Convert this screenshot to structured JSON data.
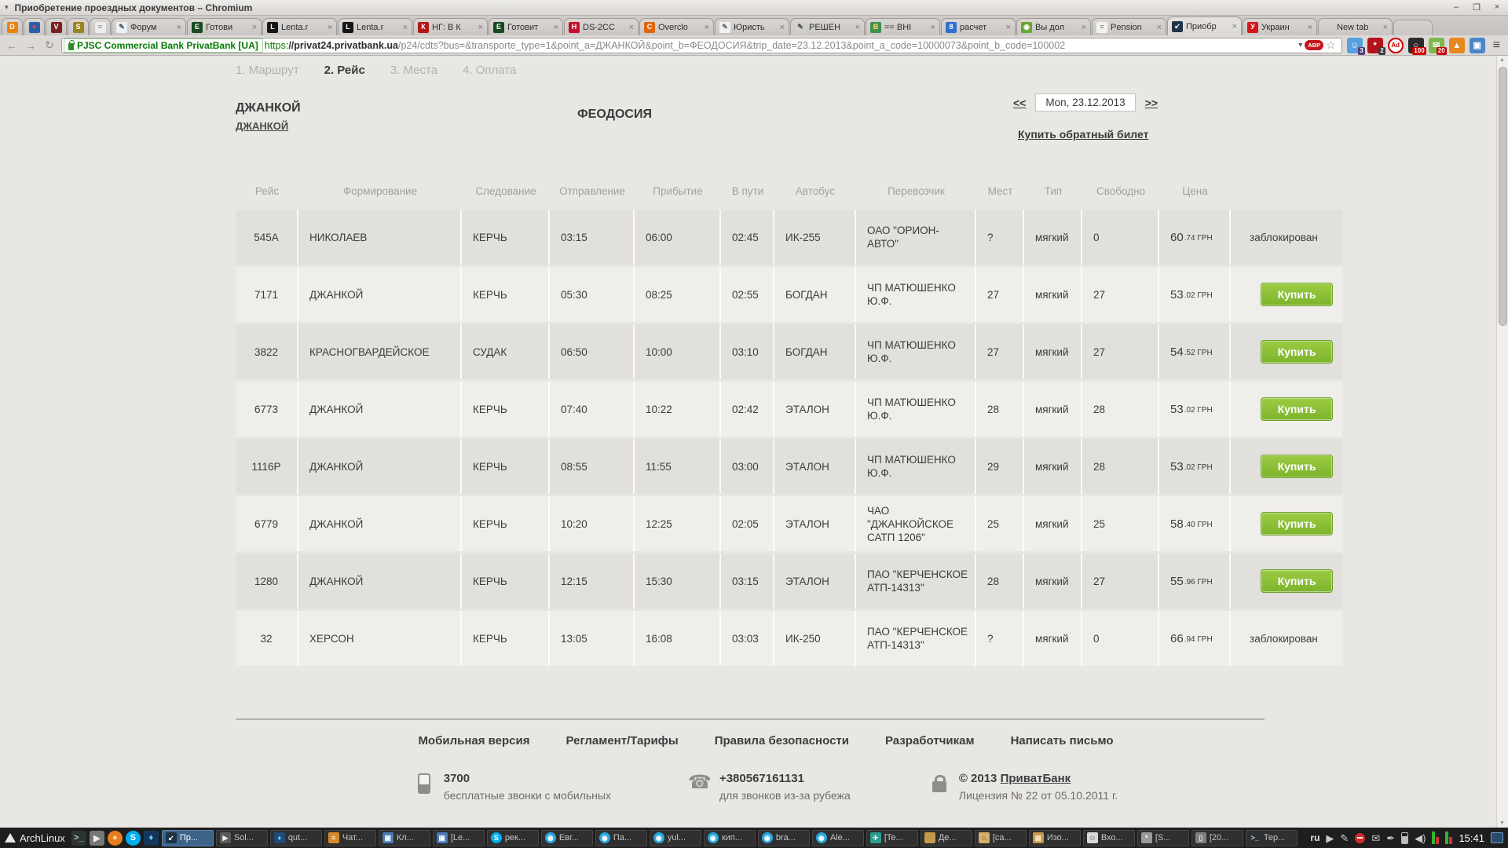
{
  "window": {
    "menu_marker": "▾",
    "title": "Приобретение проездных документов – Chromium",
    "minimize": "–",
    "maximize": "❐",
    "close": "×"
  },
  "browser": {
    "pinned_tabs": [
      {
        "bg": "#e8830c",
        "glyph": "D",
        "fg": "#ffffff"
      },
      {
        "bg": "#2b5eab",
        "glyph": "+",
        "fg": "#ff5555"
      },
      {
        "bg": "#7a2020",
        "glyph": "V",
        "fg": "#ffffff"
      },
      {
        "bg": "#9a8420",
        "glyph": "S",
        "fg": "#ffffff"
      },
      {
        "bg": "#ececec",
        "glyph": "≡",
        "fg": "#888888"
      }
    ],
    "tabs": [
      {
        "label": "Форум",
        "bg": "#eef1f4",
        "glyph": "✎",
        "fg": "#445566",
        "close": "×",
        "active": ""
      },
      {
        "label": "Готови",
        "bg": "#174a21",
        "glyph": "Е",
        "fg": "#ffffff",
        "close": "×",
        "active": ""
      },
      {
        "label": "Lenta.r",
        "bg": "#151515",
        "glyph": "L",
        "fg": "#ffffff",
        "close": "×",
        "active": ""
      },
      {
        "label": "Lenta.r",
        "bg": "#151515",
        "glyph": "L",
        "fg": "#ffffff",
        "close": "×",
        "active": ""
      },
      {
        "label": "НГ: В К",
        "bg": "#b51515",
        "glyph": "К",
        "fg": "#ffffff",
        "close": "×",
        "active": ""
      },
      {
        "label": "Готовит",
        "bg": "#174a21",
        "glyph": "Е",
        "fg": "#ffffff",
        "close": "×",
        "active": ""
      },
      {
        "label": "DS-2CC",
        "bg": "#c3112a",
        "glyph": "H",
        "fg": "#ffffff",
        "close": "×",
        "active": ""
      },
      {
        "label": "Overclo",
        "bg": "#e2660f",
        "glyph": "C",
        "fg": "#ffffff",
        "close": "×",
        "active": ""
      },
      {
        "label": "Юристь",
        "bg": "#f0f0f0",
        "glyph": "✎",
        "fg": "#666666",
        "close": "×",
        "active": ""
      },
      {
        "label": "РЕШЕН",
        "bg": "#cfcfcf",
        "glyph": "✎",
        "fg": "#444444",
        "close": "×",
        "active": ""
      },
      {
        "label": "== ВНІ",
        "bg": "#3f8f4f",
        "glyph": "В",
        "fg": "#ffe066",
        "close": "×",
        "active": ""
      },
      {
        "label": "расчет",
        "bg": "#2f6fd0",
        "glyph": "8",
        "fg": "#ffffff",
        "close": "×",
        "active": ""
      },
      {
        "label": "Вы дол",
        "bg": "#69a82f",
        "glyph": "◉",
        "fg": "#ffffff",
        "close": "×",
        "active": ""
      },
      {
        "label": "Pension",
        "bg": "#f2f2f2",
        "glyph": "≡",
        "fg": "#777777",
        "close": "×",
        "active": ""
      },
      {
        "label": "Приобр",
        "bg": "#1f3347",
        "glyph": "↙",
        "fg": "#ffffff",
        "close": "×",
        "active": "true"
      },
      {
        "label": "Украин",
        "bg": "#d01818",
        "glyph": "У",
        "fg": "#ffffff",
        "close": "×",
        "active": ""
      },
      {
        "label": "New tab",
        "bg": "transparent",
        "glyph": "",
        "fg": "#888888",
        "close": "×",
        "active": ""
      }
    ],
    "nav": {
      "back": "←",
      "forward": "→",
      "reload": "↻"
    },
    "omnibox": {
      "ev_label": "PJSC Commercial Bank PrivatBank [UA]",
      "scheme": "https:",
      "host": "//privat24.privatbank.ua",
      "path": "/p24/cdts?bus=&transporte_type=1&point_a=ДЖАНКОЙ&point_b=ФЕОДОСИЯ&trip_date=23.12.2013&point_a_code=10000073&point_b_code=100002",
      "dropdown": "▾",
      "abp_label": "ABP",
      "star": "☆",
      "menu": "≡"
    },
    "extensions": [
      {
        "name": "ghost",
        "bg": "#57a0e0",
        "glyph": "☺",
        "fg": "#ffffff",
        "badge": "3",
        "badge_bg": "#53387a",
        "cls": ""
      },
      {
        "name": "asterisk",
        "bg": "#b5121b",
        "glyph": "*",
        "fg": "#ffffff",
        "badge": "2",
        "badge_bg": "#3a3a3a",
        "cls": ""
      },
      {
        "name": "adblock",
        "bg": "#ffffff",
        "glyph": "Ad",
        "fg": "#cc0000",
        "badge": "",
        "badge_bg": "transparent",
        "cls": "adblock"
      },
      {
        "name": "magnifier",
        "bg": "#2b2b2b",
        "glyph": "○",
        "fg": "#ffffff",
        "badge": "100",
        "badge_bg": "#cc0000",
        "cls": ""
      },
      {
        "name": "mail",
        "bg": "#7db84a",
        "glyph": "✉",
        "fg": "#ffffff",
        "badge": "20",
        "badge_bg": "#cc0000",
        "cls": ""
      },
      {
        "name": "fox",
        "bg": "#e8871e",
        "glyph": "▲",
        "fg": "#ffffff",
        "badge": "",
        "badge_bg": "transparent",
        "cls": ""
      },
      {
        "name": "screens",
        "bg": "#4a86c8",
        "glyph": "▣",
        "fg": "#ffffff",
        "badge": "",
        "badge_bg": "transparent",
        "cls": ""
      }
    ]
  },
  "page": {
    "steps": [
      {
        "num": "1.",
        "label": "Маршрут",
        "active": ""
      },
      {
        "num": "2.",
        "label": "Рейс",
        "active": "true"
      },
      {
        "num": "3.",
        "label": "Места",
        "active": ""
      },
      {
        "num": "4.",
        "label": "Оплата",
        "active": ""
      }
    ],
    "route": {
      "from_title": "ДЖАНКОЙ",
      "from_link": "ДЖАНКОЙ",
      "to_title": "ФЕОДОСИЯ"
    },
    "date_nav": {
      "prev": "<<",
      "date": "Mon, 23.12.2013",
      "next": ">>",
      "return_link": "Купить обратный билет"
    },
    "table": {
      "headers": [
        {
          "label": "Рейс"
        },
        {
          "label": "Формирование"
        },
        {
          "label": "Следование"
        },
        {
          "label": "Отправление"
        },
        {
          "label": "Прибытие"
        },
        {
          "label": "В пути"
        },
        {
          "label": "Автобус"
        },
        {
          "label": "Перевозчик"
        },
        {
          "label": "Мест"
        },
        {
          "label": "Тип"
        },
        {
          "label": "Свободно"
        },
        {
          "label": "Цена"
        }
      ],
      "buy_label": "Купить",
      "blocked_label": "заблокирован",
      "rows": [
        {
          "id": "545А",
          "from": "НИКОЛАЕВ",
          "to": "КЕРЧЬ",
          "dep": "03:15",
          "arr": "06:00",
          "dur": "02:45",
          "bus": "ИК-255",
          "carrier": "ОАО \"ОРИОН-АВТО\"",
          "seats": "?",
          "type": "мягкий",
          "free": "0",
          "price": "60",
          "dec": ".74",
          "cur": "ГРН",
          "action": "blocked"
        },
        {
          "id": "7171",
          "from": "ДЖАНКОЙ",
          "to": "КЕРЧЬ",
          "dep": "05:30",
          "arr": "08:25",
          "dur": "02:55",
          "bus": "БОГДАН",
          "carrier": "ЧП МАТЮШЕНКО Ю.Ф.",
          "seats": "27",
          "type": "мягкий",
          "free": "27",
          "price": "53",
          "dec": ".02",
          "cur": "ГРН",
          "action": "buy"
        },
        {
          "id": "3822",
          "from": "КРАСНОГВАРДЕЙСКОЕ",
          "to": "СУДАК",
          "dep": "06:50",
          "arr": "10:00",
          "dur": "03:10",
          "bus": "БОГДАН",
          "carrier": "ЧП МАТЮШЕНКО Ю.Ф.",
          "seats": "27",
          "type": "мягкий",
          "free": "27",
          "price": "54",
          "dec": ".52",
          "cur": "ГРН",
          "action": "buy"
        },
        {
          "id": "6773",
          "from": "ДЖАНКОЙ",
          "to": "КЕРЧЬ",
          "dep": "07:40",
          "arr": "10:22",
          "dur": "02:42",
          "bus": "ЭТАЛОН",
          "carrier": "ЧП МАТЮШЕНКО Ю.Ф.",
          "seats": "28",
          "type": "мягкий",
          "free": "28",
          "price": "53",
          "dec": ".02",
          "cur": "ГРН",
          "action": "buy"
        },
        {
          "id": "1116Р",
          "from": "ДЖАНКОЙ",
          "to": "КЕРЧЬ",
          "dep": "08:55",
          "arr": "11:55",
          "dur": "03:00",
          "bus": "ЭТАЛОН",
          "carrier": "ЧП МАТЮШЕНКО Ю.Ф.",
          "seats": "29",
          "type": "мягкий",
          "free": "28",
          "price": "53",
          "dec": ".02",
          "cur": "ГРН",
          "action": "buy"
        },
        {
          "id": "6779",
          "from": "ДЖАНКОЙ",
          "to": "КЕРЧЬ",
          "dep": "10:20",
          "arr": "12:25",
          "dur": "02:05",
          "bus": "ЭТАЛОН",
          "carrier": "ЧАО \"ДЖАНКОЙСКОЕ САТП 1206\"",
          "seats": "25",
          "type": "мягкий",
          "free": "25",
          "price": "58",
          "dec": ".40",
          "cur": "ГРН",
          "action": "buy"
        },
        {
          "id": "1280",
          "from": "ДЖАНКОЙ",
          "to": "КЕРЧЬ",
          "dep": "12:15",
          "arr": "15:30",
          "dur": "03:15",
          "bus": "ЭТАЛОН",
          "carrier": "ПАО \"КЕРЧЕНСКОЕ АТП-14313\"",
          "seats": "28",
          "type": "мягкий",
          "free": "27",
          "price": "55",
          "dec": ".96",
          "cur": "ГРН",
          "action": "buy"
        },
        {
          "id": "32",
          "from": "ХЕРСОН",
          "to": "КЕРЧЬ",
          "dep": "13:05",
          "arr": "16:08",
          "dur": "03:03",
          "bus": "ИК-250",
          "carrier": "ПАО \"КЕРЧЕНСКОЕ АТП-14313\"",
          "seats": "?",
          "type": "мягкий",
          "free": "0",
          "price": "66",
          "dec": ".94",
          "cur": "ГРН",
          "action": "blocked"
        }
      ]
    },
    "footer": {
      "links": [
        {
          "label": "Мобильная версия"
        },
        {
          "label": "Регламент/Тарифы"
        },
        {
          "label": "Правила безопасности"
        },
        {
          "label": "Разработчикам"
        },
        {
          "label": "Написать письмо"
        }
      ],
      "info": [
        {
          "type": "mobile",
          "title": "3700",
          "title_prefix": "",
          "title_link": "",
          "subtitle": "бесплатные звонки с мобильных"
        },
        {
          "type": "phone",
          "title": "+380567161131",
          "title_prefix": "",
          "title_link": "",
          "subtitle": "для звонков из-за рубежа"
        },
        {
          "type": "license",
          "title": "",
          "title_prefix": "© 2013 ",
          "title_link": "ПриватБанк",
          "subtitle": "Лицензия № 22 от 05.10.2011 г."
        }
      ]
    }
  },
  "taskbar": {
    "logo_text": "ArchLinux",
    "launchers": [
      {
        "name": "terminal-launcher",
        "bg": "#2d3335",
        "glyph": ">_",
        "fg": "#9fd4c8",
        "round": ""
      },
      {
        "name": "play-launcher",
        "bg": "#777777",
        "glyph": "▶",
        "fg": "#eeeeee",
        "round": ""
      },
      {
        "name": "firefox-launcher",
        "bg": "#e87d1e",
        "glyph": "●",
        "fg": "#ffd9a0",
        "round": "round"
      },
      {
        "name": "skype-launcher",
        "bg": "#00aff0",
        "glyph": "S",
        "fg": "#ffffff",
        "round": "round"
      },
      {
        "name": "flame-launcher",
        "bg": "#14385c",
        "glyph": "♦",
        "fg": "#66ccff",
        "round": ""
      }
    ],
    "tasks": [
      {
        "label": "Пр...",
        "bg": "#1f3347",
        "glyph": "↙",
        "fg": "#ffffff",
        "active": "true",
        "round": ""
      },
      {
        "label": "Sol...",
        "bg": "#5a5a5a",
        "glyph": "▶",
        "fg": "#eeeeee",
        "active": "",
        "round": ""
      },
      {
        "label": "qut...",
        "bg": "#1f4a7a",
        "glyph": "♦",
        "fg": "#66ccff",
        "active": "",
        "round": ""
      },
      {
        "label": "Чат...",
        "bg": "#d88a2a",
        "glyph": "≡",
        "fg": "#ffffff",
        "active": "",
        "round": ""
      },
      {
        "label": "Кл...",
        "bg": "#4a7ab5",
        "glyph": "▣",
        "fg": "#ffffff",
        "active": "",
        "round": ""
      },
      {
        "label": "[Le...",
        "bg": "#4a7ab5",
        "glyph": "▣",
        "fg": "#ffffff",
        "active": "",
        "round": ""
      },
      {
        "label": "рек...",
        "bg": "#00aff0",
        "glyph": "S",
        "fg": "#ffffff",
        "active": "",
        "round": "round"
      },
      {
        "label": "Евг...",
        "bg": "#29a8e0",
        "glyph": "◉",
        "fg": "#ffffff",
        "active": "",
        "round": "round"
      },
      {
        "label": "Па...",
        "bg": "#29a8e0",
        "glyph": "◉",
        "fg": "#ffffff",
        "active": "",
        "round": "round"
      },
      {
        "label": "yul...",
        "bg": "#29a8e0",
        "glyph": "◉",
        "fg": "#ffffff",
        "active": "",
        "round": "round"
      },
      {
        "label": "кип...",
        "bg": "#29a8e0",
        "glyph": "◉",
        "fg": "#ffffff",
        "active": "",
        "round": "round"
      },
      {
        "label": "bra...",
        "bg": "#29a8e0",
        "glyph": "◉",
        "fg": "#ffffff",
        "active": "",
        "round": "round"
      },
      {
        "label": "Ale...",
        "bg": "#29a8e0",
        "glyph": "◉",
        "fg": "#ffffff",
        "active": "",
        "round": "round"
      },
      {
        "label": "[Te...",
        "bg": "#2a9d8f",
        "glyph": "✈",
        "fg": "#ffffff",
        "active": "",
        "round": ""
      },
      {
        "label": "Де...",
        "bg": "#c49a4a",
        "glyph": "",
        "fg": "#8a6a2a",
        "active": "",
        "round": ""
      },
      {
        "label": "[ca...",
        "bg": "#d4ae6a",
        "glyph": "⌂",
        "fg": "#7a5a20",
        "active": "",
        "round": ""
      },
      {
        "label": "Изо...",
        "bg": "#c49a4a",
        "glyph": "▦",
        "fg": "#f4e4c4",
        "active": "",
        "round": ""
      },
      {
        "label": "Вхо...",
        "bg": "#d8d8d8",
        "glyph": "☺",
        "fg": "#555555",
        "active": "",
        "round": ""
      },
      {
        "label": "[S...",
        "bg": "#9a9a9a",
        "glyph": "*",
        "fg": "#ffffff",
        "active": "",
        "round": ""
      },
      {
        "label": "[20...",
        "bg": "#808080",
        "glyph": "▯",
        "fg": "#e8e8e8",
        "active": "",
        "round": ""
      },
      {
        "label": "Тер...",
        "bg": "#2d3335",
        "glyph": ">_",
        "fg": "#cccccc",
        "active": "",
        "round": ""
      }
    ],
    "tray": {
      "layout": "ru",
      "clock": "15:41"
    }
  }
}
